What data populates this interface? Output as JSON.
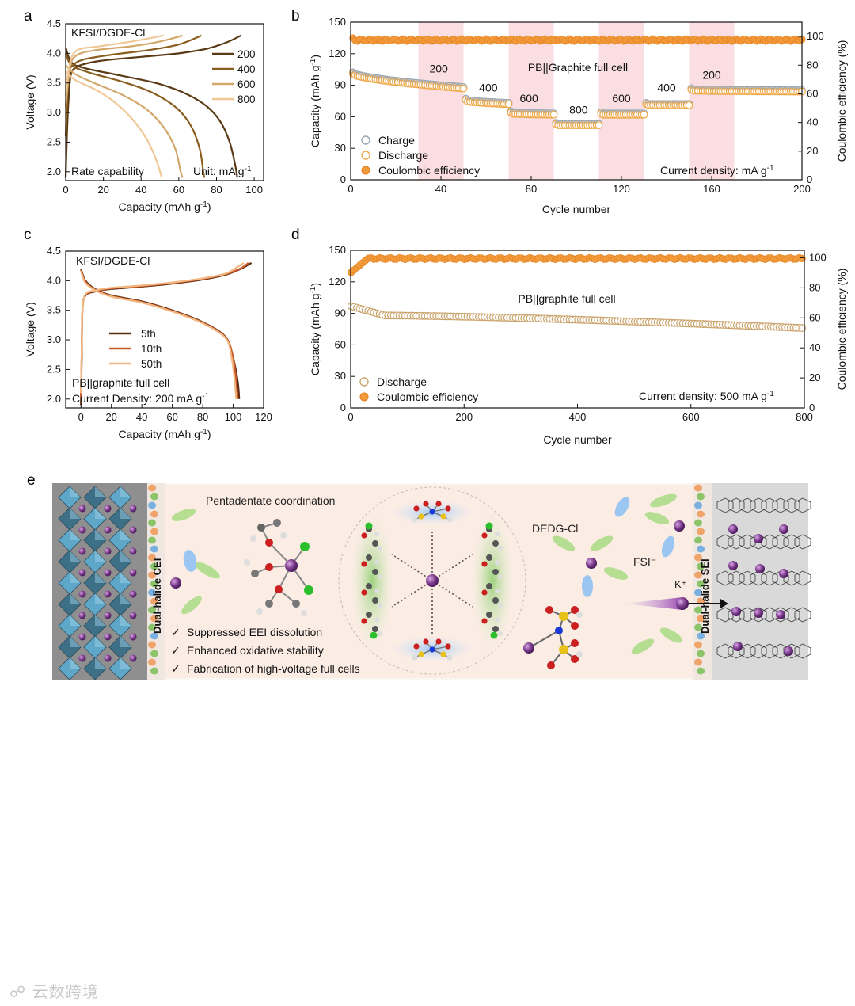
{
  "panel_labels": {
    "a": "a",
    "b": "b",
    "c": "c",
    "d": "d",
    "e": "e"
  },
  "chart_data": [
    {
      "id": "a",
      "type": "line",
      "xlabel": "Capacity (mAh g",
      "xlabel_sup": "-1",
      "xlabel_end": ")",
      "ylabel": "Voltage (V)",
      "xlim": [
        0,
        105
      ],
      "ylim": [
        1.85,
        4.5
      ],
      "xticks": [
        "0",
        "20",
        "40",
        "60",
        "80",
        "100"
      ],
      "yticks": [
        "2.0",
        "2.5",
        "3.0",
        "3.5",
        "4.0",
        "4.5"
      ],
      "annotations": {
        "title": "KFSI/DGDE-Cl",
        "note_left": "Rate capability",
        "note_right": "Unit: mA g",
        "note_right_sup": "-1"
      },
      "legend_position": "top-right",
      "series": [
        {
          "name": "200",
          "color": "#5a3a14",
          "charge": [
            [
              0,
              1.9
            ],
            [
              1,
              2.9
            ],
            [
              2.5,
              3.6
            ],
            [
              5,
              3.75
            ],
            [
              10,
              3.82
            ],
            [
              20,
              3.88
            ],
            [
              40,
              3.94
            ],
            [
              60,
              4.0
            ],
            [
              75,
              4.08
            ],
            [
              85,
              4.18
            ],
            [
              93,
              4.3
            ]
          ],
          "discharge": [
            [
              0,
              4.1
            ],
            [
              3,
              3.85
            ],
            [
              10,
              3.75
            ],
            [
              30,
              3.62
            ],
            [
              50,
              3.48
            ],
            [
              65,
              3.3
            ],
            [
              75,
              3.1
            ],
            [
              82,
              2.85
            ],
            [
              87,
              2.5
            ],
            [
              90,
              2.1
            ],
            [
              91,
              1.9
            ]
          ]
        },
        {
          "name": "400",
          "color": "#8a5e1e",
          "charge": [
            [
              0,
              2.6
            ],
            [
              1.5,
              3.6
            ],
            [
              4,
              3.8
            ],
            [
              10,
              3.9
            ],
            [
              25,
              3.98
            ],
            [
              45,
              4.06
            ],
            [
              60,
              4.15
            ],
            [
              72,
              4.3
            ]
          ],
          "discharge": [
            [
              0,
              4.0
            ],
            [
              3,
              3.8
            ],
            [
              12,
              3.68
            ],
            [
              30,
              3.52
            ],
            [
              45,
              3.35
            ],
            [
              58,
              3.1
            ],
            [
              66,
              2.8
            ],
            [
              71,
              2.4
            ],
            [
              73,
              2.0
            ],
            [
              73.5,
              1.9
            ]
          ]
        },
        {
          "name": "600",
          "color": "#d2a86a",
          "charge": [
            [
              0,
              3.1
            ],
            [
              2,
              3.7
            ],
            [
              5,
              3.95
            ],
            [
              15,
              4.05
            ],
            [
              35,
              4.12
            ],
            [
              50,
              4.2
            ],
            [
              62,
              4.3
            ]
          ],
          "discharge": [
            [
              0,
              3.8
            ],
            [
              5,
              3.65
            ],
            [
              15,
              3.5
            ],
            [
              30,
              3.3
            ],
            [
              43,
              3.05
            ],
            [
              52,
              2.75
            ],
            [
              58,
              2.4
            ],
            [
              61,
              2.0
            ],
            [
              62,
              1.9
            ]
          ]
        },
        {
          "name": "800",
          "color": "#f0c796",
          "charge": [
            [
              0,
              3.3
            ],
            [
              2,
              3.8
            ],
            [
              6,
              4.05
            ],
            [
              18,
              4.12
            ],
            [
              35,
              4.2
            ],
            [
              52,
              4.3
            ]
          ],
          "discharge": [
            [
              0,
              3.7
            ],
            [
              5,
              3.55
            ],
            [
              15,
              3.4
            ],
            [
              25,
              3.2
            ],
            [
              35,
              2.9
            ],
            [
              43,
              2.55
            ],
            [
              48,
              2.2
            ],
            [
              51,
              1.9
            ]
          ]
        }
      ]
    },
    {
      "id": "b",
      "type": "scatter",
      "xlabel": "Cycle number",
      "ylabel": "Capacity (mAh g",
      "ylabel_sup": "-1",
      "ylabel_end": ")",
      "ylabel_right": "Coulombic efficiency (%)",
      "xlim": [
        0,
        200
      ],
      "ylim": [
        0,
        150
      ],
      "ylim_right": [
        0,
        110
      ],
      "xticks": [
        "0",
        "40",
        "80",
        "120",
        "160",
        "200"
      ],
      "yticks": [
        "0",
        "30",
        "60",
        "90",
        "120",
        "150"
      ],
      "yticks_right": [
        "0",
        "20",
        "40",
        "60",
        "80",
        "100"
      ],
      "annotations": {
        "title": "PB||Graphite full cell",
        "note_right": "Current density: mA g",
        "note_right_sup": "-1"
      },
      "shaded_ranges": [
        [
          30,
          50
        ],
        [
          70,
          90
        ],
        [
          110,
          130
        ],
        [
          150,
          170
        ]
      ],
      "rate_labels": [
        {
          "text": "200",
          "x": 39,
          "y": 102
        },
        {
          "text": "400",
          "x": 61,
          "y": 84
        },
        {
          "text": "600",
          "x": 79,
          "y": 74
        },
        {
          "text": "800",
          "x": 101,
          "y": 63
        },
        {
          "text": "600",
          "x": 120,
          "y": 74
        },
        {
          "text": "400",
          "x": 140,
          "y": 84
        },
        {
          "text": "200",
          "x": 160,
          "y": 96
        }
      ],
      "segments": [
        {
          "from": 1,
          "to": 50,
          "start": 101,
          "end": 87
        },
        {
          "from": 51,
          "to": 70,
          "start": 75,
          "end": 72
        },
        {
          "from": 71,
          "to": 90,
          "start": 63,
          "end": 62
        },
        {
          "from": 91,
          "to": 110,
          "start": 52,
          "end": 52
        },
        {
          "from": 111,
          "to": 130,
          "start": 62,
          "end": 62
        },
        {
          "from": 131,
          "to": 150,
          "start": 71,
          "end": 71
        },
        {
          "from": 151,
          "to": 200,
          "start": 85,
          "end": 84
        }
      ],
      "ce": {
        "first": 99,
        "value": 97.5
      },
      "legend": [
        "Charge",
        "Discharge",
        "Coulombic efficiency"
      ],
      "legend_position": "bottom-left"
    },
    {
      "id": "c",
      "type": "line",
      "xlabel": "Capacity (mAh g",
      "xlabel_sup": "-1",
      "xlabel_end": ")",
      "ylabel": "Voltage (V)",
      "xlim": [
        -10,
        120
      ],
      "ylim": [
        1.85,
        4.5
      ],
      "xticks": [
        "0",
        "20",
        "40",
        "60",
        "80",
        "100",
        "120"
      ],
      "yticks": [
        "2.0",
        "2.5",
        "3.0",
        "3.5",
        "4.0",
        "4.5"
      ],
      "annotations": {
        "title": "KFSI/DGDE-Cl",
        "note_1": "PB||graphite full cell",
        "note_2": "Current Density: 200 mA g",
        "note_2_sup": "-1"
      },
      "legend_position": "middle-left",
      "series": [
        {
          "name": "5th",
          "color": "#5a2a10",
          "charge": [
            [
              0,
              1.9
            ],
            [
              0.5,
              2.7
            ],
            [
              1,
              3.5
            ],
            [
              3,
              3.75
            ],
            [
              10,
              3.82
            ],
            [
              20,
              3.86
            ],
            [
              40,
              3.9
            ],
            [
              60,
              3.95
            ],
            [
              80,
              4.02
            ],
            [
              95,
              4.1
            ],
            [
              105,
              4.2
            ],
            [
              112,
              4.3
            ]
          ],
          "discharge": [
            [
              0,
              4.2
            ],
            [
              3,
              4.0
            ],
            [
              10,
              3.85
            ],
            [
              20,
              3.75
            ],
            [
              40,
              3.65
            ],
            [
              60,
              3.5
            ],
            [
              80,
              3.3
            ],
            [
              95,
              3.05
            ],
            [
              100,
              2.7
            ],
            [
              103,
              2.3
            ],
            [
              104,
              2.0
            ]
          ]
        },
        {
          "name": "10th",
          "color": "#c85a2a",
          "charge": [
            [
              0,
              2.0
            ],
            [
              0.5,
              2.8
            ],
            [
              1,
              3.5
            ],
            [
              3,
              3.76
            ],
            [
              10,
              3.83
            ],
            [
              20,
              3.87
            ],
            [
              40,
              3.91
            ],
            [
              60,
              3.96
            ],
            [
              80,
              4.03
            ],
            [
              95,
              4.11
            ],
            [
              105,
              4.21
            ],
            [
              110,
              4.3
            ]
          ],
          "discharge": [
            [
              0,
              4.18
            ],
            [
              3,
              3.98
            ],
            [
              10,
              3.84
            ],
            [
              20,
              3.74
            ],
            [
              40,
              3.64
            ],
            [
              60,
              3.49
            ],
            [
              80,
              3.29
            ],
            [
              95,
              3.04
            ],
            [
              100,
              2.7
            ],
            [
              102,
              2.3
            ],
            [
              103,
              2.0
            ]
          ]
        },
        {
          "name": "50th",
          "color": "#f2b680",
          "charge": [
            [
              0,
              2.1
            ],
            [
              0.5,
              2.9
            ],
            [
              1,
              3.5
            ],
            [
              3,
              3.77
            ],
            [
              10,
              3.84
            ],
            [
              20,
              3.88
            ],
            [
              40,
              3.92
            ],
            [
              60,
              3.97
            ],
            [
              80,
              4.04
            ],
            [
              95,
              4.12
            ],
            [
              102,
              4.22
            ],
            [
              107,
              4.3
            ]
          ],
          "discharge": [
            [
              0,
              4.16
            ],
            [
              3,
              3.96
            ],
            [
              10,
              3.83
            ],
            [
              20,
              3.73
            ],
            [
              40,
              3.63
            ],
            [
              60,
              3.48
            ],
            [
              80,
              3.28
            ],
            [
              95,
              3.03
            ],
            [
              99,
              2.7
            ],
            [
              101,
              2.3
            ],
            [
              102,
              2.0
            ]
          ]
        }
      ]
    },
    {
      "id": "d",
      "type": "scatter",
      "xlabel": "Cycle number",
      "ylabel": "Capacity (mAh g",
      "ylabel_sup": "-1",
      "ylabel_end": ")",
      "ylabel_right": "Coulombic efficiency (%)",
      "xlim": [
        0,
        800
      ],
      "ylim": [
        0,
        150
      ],
      "ylim_right": [
        0,
        105
      ],
      "xticks": [
        "0",
        "200",
        "400",
        "600",
        "800"
      ],
      "yticks": [
        "0",
        "30",
        "60",
        "90",
        "120",
        "150"
      ],
      "yticks_right": [
        "0",
        "20",
        "40",
        "60",
        "80",
        "100"
      ],
      "annotations": {
        "title": "PB||graphite full cell",
        "note_right": "Current density: 500 mA g",
        "note_right_sup": "-1"
      },
      "discharge": {
        "start": 97,
        "plateau": 88,
        "end": 76
      },
      "ce": {
        "first": 90,
        "value": 99.5
      },
      "legend": [
        "Discharge",
        "Coulombic efficiency"
      ],
      "legend_position": "bottom-left"
    }
  ],
  "schematic": {
    "label_cei": "Dual-halide CEI",
    "label_sei": "Dual-halide SEI",
    "title": "Pentadentate coordination",
    "label_dedg": "DEDG-Cl",
    "label_fsi": "FSI⁻",
    "label_k": "K⁺",
    "bullets": [
      "Suppressed EEI dissolution",
      "Enhanced oxidative stability",
      "Fabrication of high-voltage full cells"
    ],
    "check": "✓",
    "colors": {
      "k_ion": "#7a3a8a",
      "cathode": "#5a9ab8",
      "anode": "#555555",
      "green": "#8ec46a",
      "blue": "#8ab8e8",
      "band": "#fbeee6"
    }
  },
  "watermark": "云数跨境"
}
